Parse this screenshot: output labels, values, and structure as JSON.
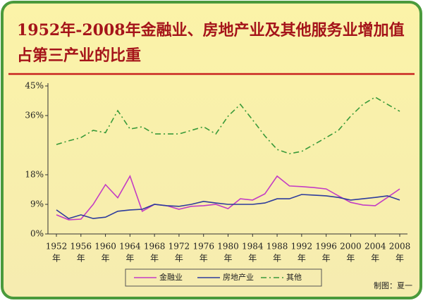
{
  "chart_data": {
    "type": "line",
    "title": "1952年-2008年金融业、房地产业及其他服务业增加值",
    "subtitle": "占第三产业的比重",
    "credit": "制图：夏一",
    "x": [
      1952,
      1954,
      1956,
      1958,
      1960,
      1962,
      1964,
      1966,
      1968,
      1970,
      1972,
      1974,
      1976,
      1978,
      1980,
      1982,
      1984,
      1986,
      1988,
      1990,
      1992,
      1994,
      1996,
      1998,
      2000,
      2002,
      2004,
      2006,
      2008
    ],
    "series": [
      {
        "name": "金融业",
        "color": "#c43cc4",
        "dash": "solid",
        "values": [
          5.8,
          4.3,
          4.5,
          9,
          15,
          11,
          17.6,
          6.9,
          9,
          8.6,
          7.5,
          8.4,
          8.6,
          9,
          7.7,
          10.7,
          10.3,
          12.2,
          17.6,
          14.6,
          14.4,
          14.1,
          13.7,
          11.6,
          9.6,
          8.8,
          8.6,
          11.1,
          13.7
        ]
      },
      {
        "name": "房地产业",
        "color": "#2e3c9c",
        "dash": "solid",
        "values": [
          7.3,
          4.7,
          5.8,
          4.7,
          5.1,
          6.9,
          7.3,
          7.5,
          9,
          8.6,
          8.4,
          9,
          9.9,
          9.4,
          9,
          9,
          9,
          9.4,
          10.7,
          10.7,
          12,
          11.8,
          11.6,
          11.1,
          10.3,
          10.7,
          11.1,
          11.6,
          10.3
        ]
      },
      {
        "name": "其他",
        "color": "#3a9a3a",
        "dash": "dashdot",
        "values": [
          27.2,
          28.3,
          29.3,
          31.5,
          30.8,
          37.5,
          31.9,
          32.6,
          30.4,
          30.4,
          30.4,
          31.5,
          32.6,
          30.4,
          35.8,
          39.4,
          34.7,
          29.8,
          25.7,
          24.4,
          25.1,
          27.2,
          29.3,
          31.5,
          35.8,
          39.4,
          41.6,
          39.4,
          37.3
        ]
      }
    ],
    "xlim": [
      1952,
      2008
    ],
    "xticks": [
      {
        "value": 1952,
        "label": "1952",
        "suffix": "年"
      },
      {
        "value": 1956,
        "label": "1956",
        "suffix": "年"
      },
      {
        "value": 1960,
        "label": "1960",
        "suffix": "年"
      },
      {
        "value": 1964,
        "label": "1964",
        "suffix": "年"
      },
      {
        "value": 1968,
        "label": "1968",
        "suffix": "年"
      },
      {
        "value": 1972,
        "label": "1972",
        "suffix": "年"
      },
      {
        "value": 1976,
        "label": "1976",
        "suffix": "年"
      },
      {
        "value": 1980,
        "label": "1980",
        "suffix": "年"
      },
      {
        "value": 1984,
        "label": "1984",
        "suffix": "年"
      },
      {
        "value": 1988,
        "label": "1988",
        "suffix": "年"
      },
      {
        "value": 1992,
        "label": "1992",
        "suffix": "年"
      },
      {
        "value": 1996,
        "label": "1996",
        "suffix": "年"
      },
      {
        "value": 2000,
        "label": "2000",
        "suffix": "年"
      },
      {
        "value": 2004,
        "label": "2004",
        "suffix": "年"
      },
      {
        "value": 2008,
        "label": "2008",
        "suffix": "年"
      }
    ],
    "ylim": [
      0,
      45
    ],
    "yticks": [
      {
        "value": 0,
        "label": "0%"
      },
      {
        "value": 9,
        "label": "9%"
      },
      {
        "value": 18,
        "label": "18%"
      },
      {
        "value": 36,
        "label": "36%"
      },
      {
        "value": 45,
        "label": "45%"
      }
    ],
    "grid": false
  }
}
